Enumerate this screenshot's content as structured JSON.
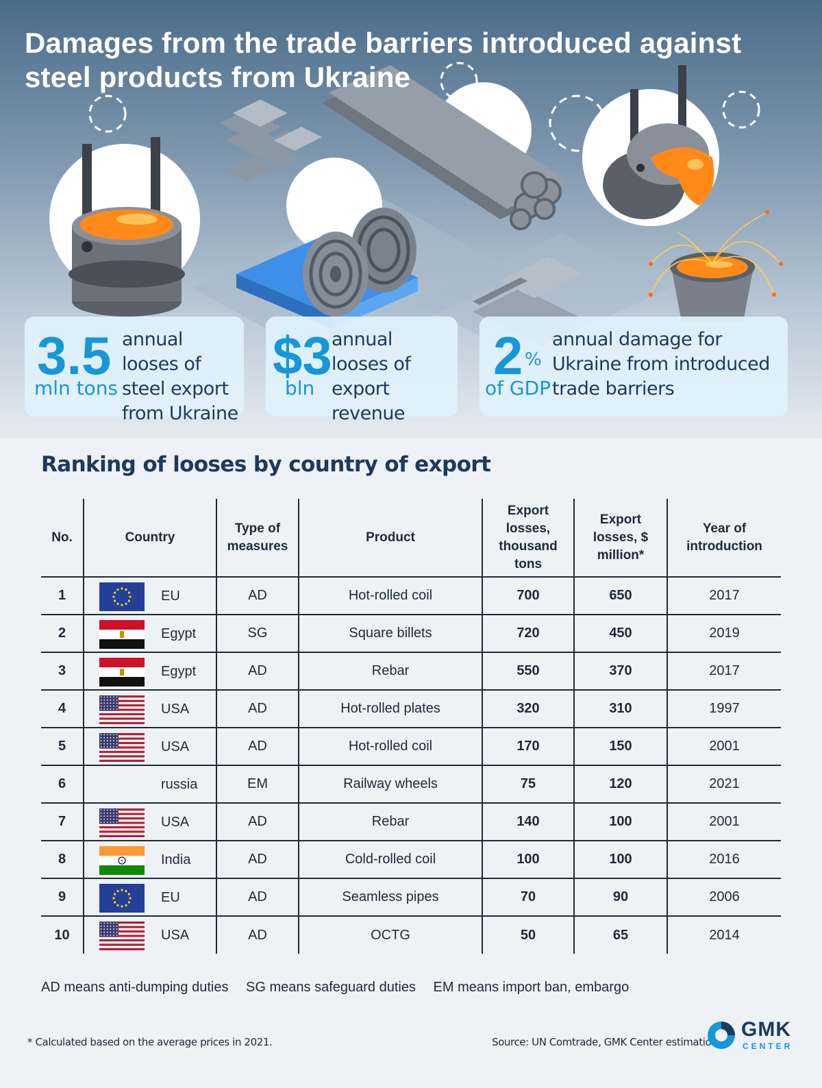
{
  "header": {
    "title": "Damages from the trade barriers introduced against steel products from Ukraine"
  },
  "stats": [
    {
      "value": "3.5",
      "unit": "mln tons",
      "description": "annual looses of steel export from Ukraine"
    },
    {
      "value": "$3",
      "unit": "bln",
      "description": "annual looses of export revenue"
    },
    {
      "value": "2",
      "value_suffix": "%",
      "unit": "of GDP",
      "description": "annual damage for Ukraine from introduced trade barriers"
    }
  ],
  "ranking": {
    "title": "Ranking of looses by country of export",
    "columns": [
      "No.",
      "Country",
      "Type of measures",
      "Product",
      "Export losses, thousand tons",
      "Export losses, $ million*",
      "Year of introduction"
    ],
    "rows": [
      {
        "no": "1",
        "flag": "eu-flag-icon",
        "country": "EU",
        "measure": "AD",
        "product": "Hot-rolled coil",
        "tons": "700",
        "usd": "650",
        "year": "2017"
      },
      {
        "no": "2",
        "flag": "egypt-flag-icon",
        "country": "Egypt",
        "measure": "SG",
        "product": "Square billets",
        "tons": "720",
        "usd": "450",
        "year": "2019"
      },
      {
        "no": "3",
        "flag": "egypt-flag-icon",
        "country": "Egypt",
        "measure": "AD",
        "product": "Rebar",
        "tons": "550",
        "usd": "370",
        "year": "2017"
      },
      {
        "no": "4",
        "flag": "usa-flag-icon",
        "country": "USA",
        "measure": "AD",
        "product": "Hot-rolled plates",
        "tons": "320",
        "usd": "310",
        "year": "1997"
      },
      {
        "no": "5",
        "flag": "usa-flag-icon",
        "country": "USA",
        "measure": "AD",
        "product": "Hot-rolled coil",
        "tons": "170",
        "usd": "150",
        "year": "2001"
      },
      {
        "no": "6",
        "flag": "",
        "country": "russia",
        "measure": "EM",
        "product": "Railway wheels",
        "tons": "75",
        "usd": "120",
        "year": "2021"
      },
      {
        "no": "7",
        "flag": "usa-flag-icon",
        "country": "USA",
        "measure": "AD",
        "product": "Rebar",
        "tons": "140",
        "usd": "100",
        "year": "2001"
      },
      {
        "no": "8",
        "flag": "india-flag-icon",
        "country": "India",
        "measure": "AD",
        "product": "Cold-rolled coil",
        "tons": "100",
        "usd": "100",
        "year": "2016"
      },
      {
        "no": "9",
        "flag": "eu-flag-icon",
        "country": "EU",
        "measure": "AD",
        "product": "Seamless pipes",
        "tons": "70",
        "usd": "90",
        "year": "2006"
      },
      {
        "no": "10",
        "flag": "usa-flag-icon",
        "country": "USA",
        "measure": "AD",
        "product": "OCTG",
        "tons": "50",
        "usd": "65",
        "year": "2014"
      }
    ]
  },
  "legend": [
    "AD means anti-dumping duties",
    "SG means safeguard duties",
    "EM means import ban, embargo"
  ],
  "footnote": "* Calculated based on the average prices in 2021.",
  "source": "Source: UN Comtrade, GMK Center estimations",
  "logo": {
    "name": "GMK",
    "sub": "CENTER"
  },
  "colors": {
    "accent": "#1597d8",
    "navy": "#1c3a5c",
    "molten": "#ff8a1a"
  }
}
